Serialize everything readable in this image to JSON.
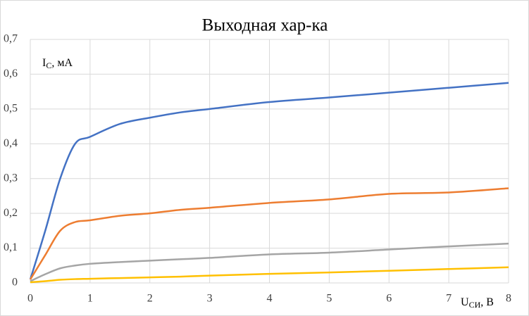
{
  "chart_data": {
    "type": "line",
    "title": "Выходная хар-ка",
    "ylabel": {
      "main": "I",
      "sub": "C",
      "rest": ", мА"
    },
    "xlabel": {
      "main": "U",
      "sub": "СИ",
      "rest": ", В"
    },
    "x": [
      0,
      0.25,
      0.5,
      0.75,
      1,
      1.5,
      2,
      2.5,
      3,
      4,
      5,
      6,
      7,
      8
    ],
    "series": [
      {
        "color": "#4472c4",
        "values": [
          0.01,
          0.15,
          0.3,
          0.4,
          0.42,
          0.457,
          0.475,
          0.49,
          0.5,
          0.52,
          0.533,
          0.547,
          0.561,
          0.575
        ]
      },
      {
        "color": "#ed7d31",
        "values": [
          0.01,
          0.08,
          0.15,
          0.175,
          0.18,
          0.193,
          0.2,
          0.21,
          0.216,
          0.23,
          0.24,
          0.256,
          0.26,
          0.272
        ]
      },
      {
        "color": "#a5a5a5",
        "values": [
          0.005,
          0.025,
          0.042,
          0.05,
          0.055,
          0.06,
          0.064,
          0.068,
          0.072,
          0.082,
          0.087,
          0.096,
          0.105,
          0.113
        ]
      },
      {
        "color": "#ffc000",
        "values": [
          0.002,
          0.005,
          0.009,
          0.011,
          0.012,
          0.014,
          0.016,
          0.018,
          0.021,
          0.026,
          0.03,
          0.035,
          0.04,
          0.045
        ]
      }
    ],
    "xlim": [
      0,
      8
    ],
    "xticks": [
      0,
      1,
      2,
      3,
      4,
      5,
      6,
      7,
      8
    ],
    "ylim": [
      0,
      0.7
    ],
    "yticks": [
      0,
      {
        "value": 0.1,
        "label": "0,1"
      },
      {
        "value": 0.2,
        "label": "0,2"
      },
      {
        "value": 0.3,
        "label": "0,3"
      },
      {
        "value": 0.4,
        "label": "0,4"
      },
      {
        "value": 0.5,
        "label": "0,5"
      },
      {
        "value": 0.6,
        "label": "0,6"
      },
      {
        "value": 0.7,
        "label": "0,7"
      }
    ],
    "grid": true
  }
}
